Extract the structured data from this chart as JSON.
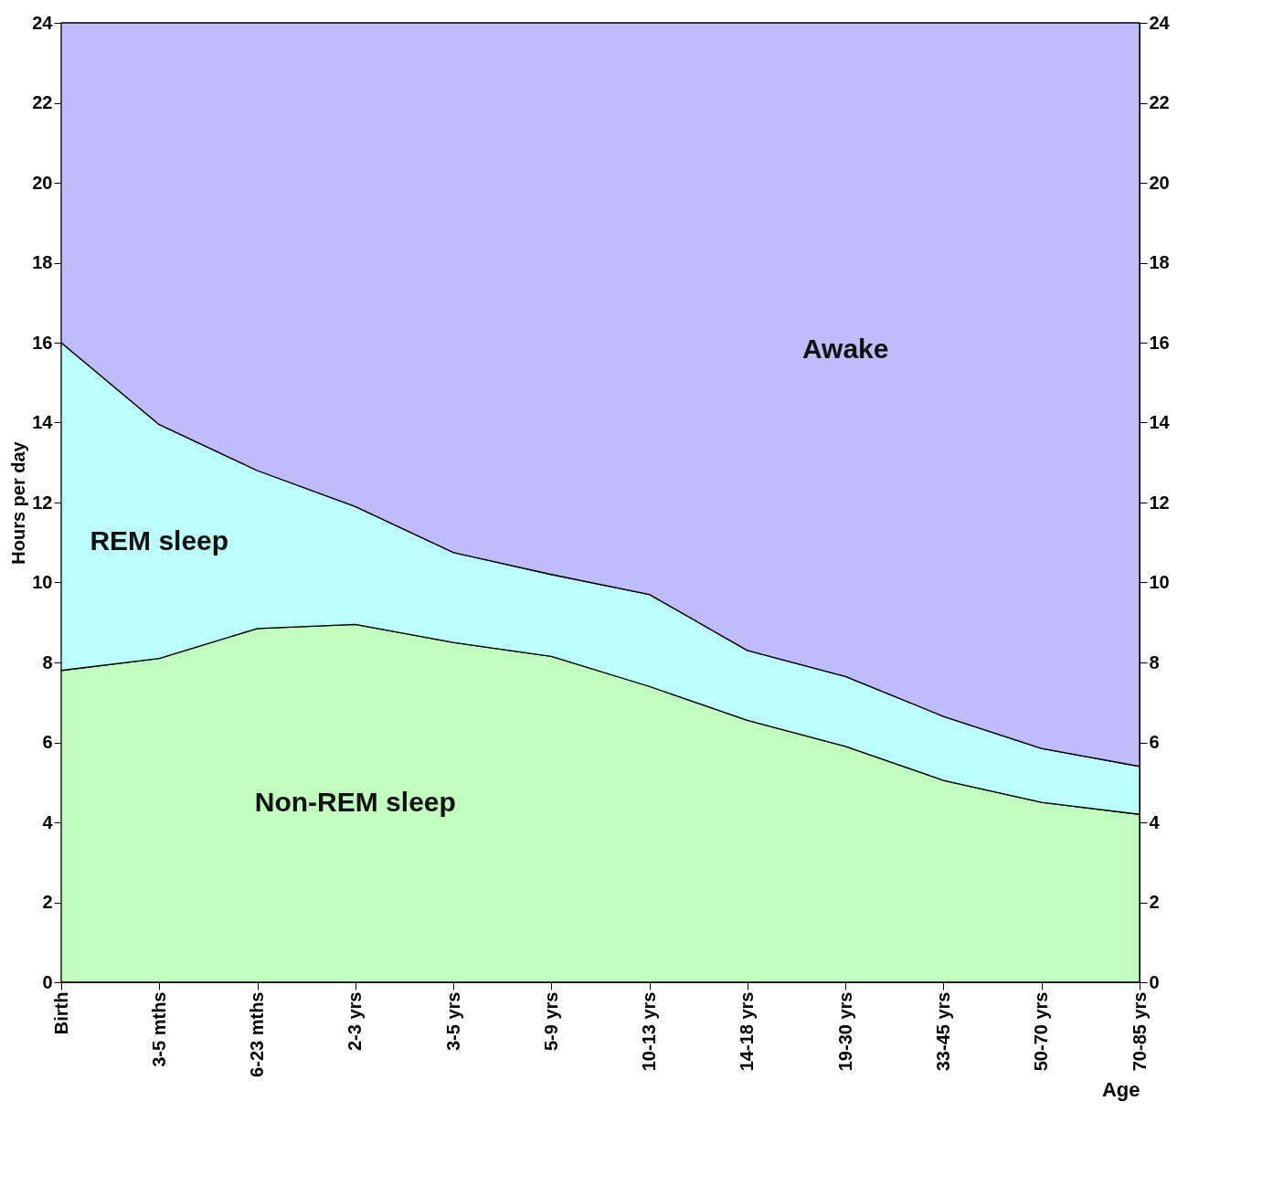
{
  "chart_data": {
    "type": "area",
    "stacked": true,
    "xlabel": "Age",
    "ylabel": "Hours per day",
    "categories": [
      "Birth",
      "3-5 mths",
      "6-23 mths",
      "2-3 yrs",
      "3-5 yrs",
      "5-9 yrs",
      "10-13 yrs",
      "14-18 yrs",
      "19-30 yrs",
      "33-45 yrs",
      "50-70 yrs",
      "70-85 yrs"
    ],
    "series": [
      {
        "name": "Non-REM sleep",
        "color": "#c0fbc0",
        "values": [
          7.8,
          8.1,
          8.85,
          8.95,
          8.5,
          8.15,
          7.4,
          6.55,
          5.9,
          5.05,
          4.5,
          4.2
        ]
      },
      {
        "name": "REM sleep",
        "color": "#bcfdfd",
        "values": [
          8.2,
          5.85,
          3.95,
          2.95,
          2.25,
          2.05,
          2.3,
          1.75,
          1.75,
          1.6,
          1.35,
          1.2
        ]
      },
      {
        "name": "Awake",
        "color": "#bebcfb",
        "values": [
          8,
          10.05,
          11.2,
          12.1,
          13.25,
          13.8,
          14.3,
          15.7,
          16.35,
          17.35,
          18.15,
          18.6
        ]
      }
    ],
    "ylim": [
      0,
      24
    ],
    "yticks": [
      0,
      2,
      4,
      6,
      8,
      10,
      12,
      14,
      16,
      18,
      20,
      22,
      24
    ],
    "y2lim": [
      0,
      24
    ],
    "y2ticks": [
      0,
      2,
      4,
      6,
      8,
      10,
      12,
      14,
      16,
      18,
      20,
      22,
      24
    ],
    "legend": false,
    "grid": false
  }
}
